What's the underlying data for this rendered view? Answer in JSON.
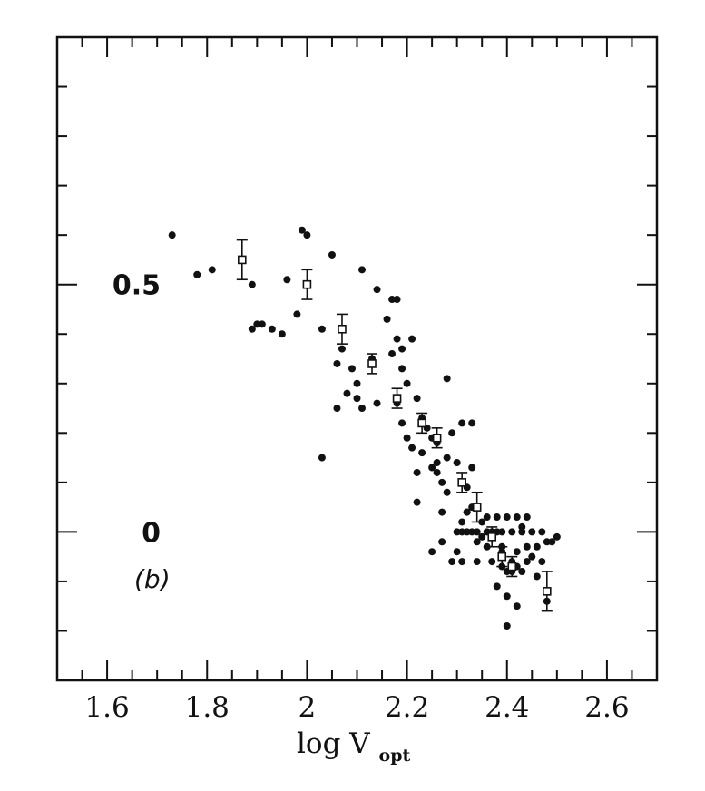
{
  "chart_data": {
    "type": "scatter",
    "xlabel": "log V",
    "xlabel_sub": "opt",
    "panel_label": "(b)",
    "xlim": [
      1.5,
      2.7
    ],
    "ylim": [
      -0.3,
      1.0
    ],
    "x_ticks": [
      "1.6",
      "1.8",
      "2",
      "2.2",
      "2.4",
      "2.6"
    ],
    "x_tick_values": [
      1.6,
      1.8,
      2.0,
      2.2,
      2.4,
      2.6
    ],
    "y_ticks": [
      "0.5",
      "0"
    ],
    "y_tick_values": [
      0.5,
      0.0
    ],
    "points": [
      [
        1.73,
        0.6
      ],
      [
        1.78,
        0.52
      ],
      [
        1.81,
        0.53
      ],
      [
        1.89,
        0.5
      ],
      [
        1.9,
        0.42
      ],
      [
        1.89,
        0.41
      ],
      [
        1.91,
        0.42
      ],
      [
        1.93,
        0.41
      ],
      [
        1.95,
        0.4
      ],
      [
        1.96,
        0.51
      ],
      [
        1.98,
        0.44
      ],
      [
        1.99,
        0.61
      ],
      [
        2.0,
        0.6
      ],
      [
        2.03,
        0.41
      ],
      [
        2.05,
        0.56
      ],
      [
        2.06,
        0.34
      ],
      [
        2.07,
        0.37
      ],
      [
        2.09,
        0.33
      ],
      [
        2.1,
        0.3
      ],
      [
        2.11,
        0.25
      ],
      [
        2.08,
        0.28
      ],
      [
        2.1,
        0.27
      ],
      [
        2.13,
        0.35
      ],
      [
        2.14,
        0.26
      ],
      [
        2.03,
        0.15
      ],
      [
        2.06,
        0.25
      ],
      [
        2.11,
        0.53
      ],
      [
        2.14,
        0.49
      ],
      [
        2.16,
        0.43
      ],
      [
        2.17,
        0.47
      ],
      [
        2.18,
        0.47
      ],
      [
        2.18,
        0.39
      ],
      [
        2.19,
        0.37
      ],
      [
        2.17,
        0.36
      ],
      [
        2.19,
        0.33
      ],
      [
        2.21,
        0.39
      ],
      [
        2.2,
        0.3
      ],
      [
        2.18,
        0.26
      ],
      [
        2.19,
        0.22
      ],
      [
        2.2,
        0.19
      ],
      [
        2.21,
        0.17
      ],
      [
        2.22,
        0.12
      ],
      [
        2.22,
        0.27
      ],
      [
        2.23,
        0.23
      ],
      [
        2.24,
        0.21
      ],
      [
        2.23,
        0.16
      ],
      [
        2.25,
        0.13
      ],
      [
        2.26,
        0.14
      ],
      [
        2.22,
        0.06
      ],
      [
        2.26,
        0.12
      ],
      [
        2.27,
        0.1
      ],
      [
        2.28,
        0.15
      ],
      [
        2.28,
        0.08
      ],
      [
        2.27,
        0.04
      ],
      [
        2.28,
        0.31
      ],
      [
        2.29,
        0.2
      ],
      [
        2.3,
        0.14
      ],
      [
        2.31,
        0.22
      ],
      [
        2.32,
        0.09
      ],
      [
        2.32,
        0.04
      ],
      [
        2.33,
        0.13
      ],
      [
        2.33,
        0.22
      ],
      [
        2.25,
        0.19
      ],
      [
        2.26,
        0.18
      ],
      [
        2.25,
        -0.04
      ],
      [
        2.27,
        -0.02
      ],
      [
        2.29,
        -0.06
      ],
      [
        2.3,
        0.0
      ],
      [
        2.31,
        0.0
      ],
      [
        2.32,
        0.0
      ],
      [
        2.33,
        0.0
      ],
      [
        2.34,
        0.0
      ],
      [
        2.31,
        -0.06
      ],
      [
        2.3,
        -0.04
      ],
      [
        2.33,
        0.05
      ],
      [
        2.34,
        -0.06
      ],
      [
        2.36,
        0.0
      ],
      [
        2.37,
        0.0
      ],
      [
        2.38,
        0.0
      ],
      [
        2.39,
        0.0
      ],
      [
        2.31,
        0.02
      ],
      [
        2.32,
        0.04
      ],
      [
        2.35,
        0.02
      ],
      [
        2.36,
        0.03
      ],
      [
        2.38,
        0.03
      ],
      [
        2.4,
        0.03
      ],
      [
        2.42,
        0.03
      ],
      [
        2.44,
        0.03
      ],
      [
        2.41,
        0.0
      ],
      [
        2.43,
        0.0
      ],
      [
        2.45,
        0.0
      ],
      [
        2.47,
        0.0
      ],
      [
        2.34,
        -0.02
      ],
      [
        2.36,
        -0.03
      ],
      [
        2.39,
        -0.03
      ],
      [
        2.42,
        -0.04
      ],
      [
        2.44,
        -0.03
      ],
      [
        2.46,
        -0.03
      ],
      [
        2.48,
        -0.02
      ],
      [
        2.5,
        -0.01
      ],
      [
        2.37,
        -0.06
      ],
      [
        2.39,
        -0.07
      ],
      [
        2.41,
        -0.06
      ],
      [
        2.43,
        -0.08
      ],
      [
        2.45,
        -0.05
      ],
      [
        2.47,
        -0.06
      ],
      [
        2.49,
        -0.02
      ],
      [
        2.38,
        -0.11
      ],
      [
        2.4,
        -0.13
      ],
      [
        2.42,
        -0.15
      ],
      [
        2.46,
        -0.09
      ],
      [
        2.48,
        -0.14
      ],
      [
        2.41,
        -0.08
      ],
      [
        2.39,
        -0.04
      ],
      [
        2.35,
        -0.01
      ],
      [
        2.4,
        -0.08
      ],
      [
        2.42,
        -0.07
      ],
      [
        2.44,
        -0.06
      ],
      [
        2.4,
        -0.19
      ],
      [
        2.43,
        0.01
      ]
    ],
    "binned_means": [
      {
        "x": 1.87,
        "y": 0.55,
        "err": 0.04
      },
      {
        "x": 2.0,
        "y": 0.5,
        "err": 0.03
      },
      {
        "x": 2.07,
        "y": 0.41,
        "err": 0.03
      },
      {
        "x": 2.13,
        "y": 0.34,
        "err": 0.02
      },
      {
        "x": 2.18,
        "y": 0.27,
        "err": 0.02
      },
      {
        "x": 2.23,
        "y": 0.22,
        "err": 0.02
      },
      {
        "x": 2.26,
        "y": 0.19,
        "err": 0.02
      },
      {
        "x": 2.31,
        "y": 0.1,
        "err": 0.02
      },
      {
        "x": 2.34,
        "y": 0.05,
        "err": 0.03
      },
      {
        "x": 2.37,
        "y": -0.01,
        "err": 0.02
      },
      {
        "x": 2.39,
        "y": -0.05,
        "err": 0.02
      },
      {
        "x": 2.41,
        "y": -0.07,
        "err": 0.02
      },
      {
        "x": 2.48,
        "y": -0.12,
        "err": 0.04
      }
    ]
  }
}
